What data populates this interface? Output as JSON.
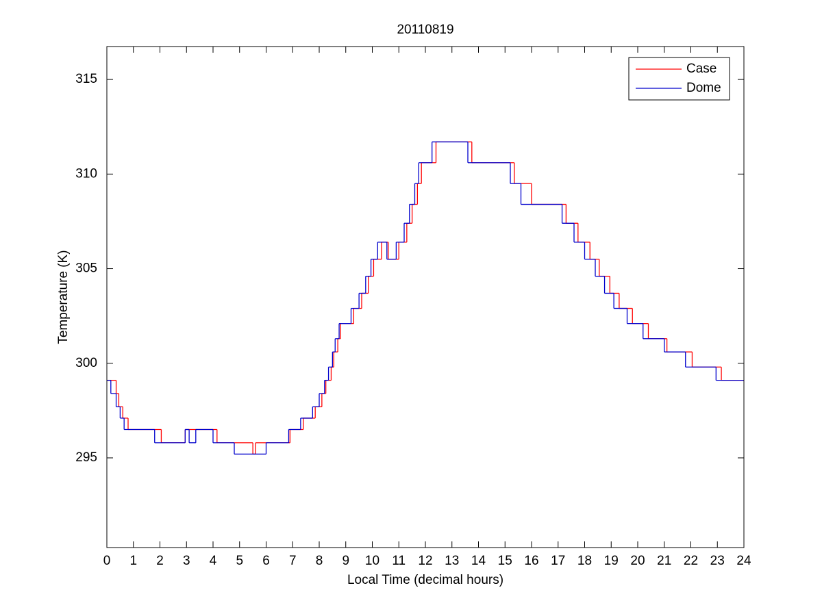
{
  "chart_data": {
    "type": "line",
    "drawstyle": "steps-post",
    "title": "20110819",
    "xlabel": "Local Time (decimal hours)",
    "ylabel": "Temperature (K)",
    "xlim": [
      0,
      24
    ],
    "xticks": [
      0,
      1,
      2,
      3,
      4,
      5,
      6,
      7,
      8,
      9,
      10,
      11,
      12,
      13,
      14,
      15,
      16,
      17,
      18,
      19,
      20,
      21,
      22,
      23,
      24
    ],
    "ylim": [
      290.26,
      316.74
    ],
    "yticks": [
      295,
      300,
      305,
      310,
      315
    ],
    "grid": false,
    "legend": "upper right",
    "series": [
      {
        "name": "Case",
        "color": "#ff0000",
        "x": [
          0,
          0.35,
          0.45,
          0.6,
          0.8,
          2.05,
          2.95,
          4.15,
          5.5,
          5.6,
          6.9,
          7.4,
          7.85,
          8.1,
          8.25,
          8.45,
          8.55,
          8.7,
          8.8,
          9.3,
          9.6,
          9.85,
          10.05,
          10.35,
          10.6,
          11.0,
          11.3,
          11.5,
          11.7,
          11.85,
          12.4,
          13.75,
          15.35,
          16.0,
          17.3,
          17.75,
          18.2,
          18.55,
          18.95,
          19.3,
          19.8,
          20.4,
          21.1,
          22.05,
          23.15,
          24
        ],
        "values": [
          299.1,
          298.4,
          297.7,
          297.1,
          296.5,
          295.8,
          296.5,
          295.8,
          295.2,
          295.8,
          296.5,
          297.1,
          297.7,
          298.4,
          299.1,
          299.8,
          300.6,
          301.3,
          302.1,
          302.9,
          303.7,
          304.6,
          305.5,
          306.4,
          305.5,
          306.4,
          307.4,
          308.4,
          309.5,
          310.6,
          311.7,
          310.6,
          309.5,
          308.4,
          307.4,
          306.4,
          305.5,
          304.6,
          303.7,
          302.9,
          302.1,
          301.3,
          300.6,
          299.8,
          299.1,
          299.1
        ]
      },
      {
        "name": "Dome",
        "color": "#0000cc",
        "x": [
          0,
          0.15,
          0.35,
          0.5,
          0.65,
          1.8,
          2.95,
          3.1,
          3.35,
          4.0,
          4.8,
          6.0,
          6.85,
          7.3,
          7.75,
          8.0,
          8.2,
          8.35,
          8.5,
          8.6,
          8.75,
          9.2,
          9.5,
          9.75,
          9.95,
          10.2,
          10.55,
          10.9,
          11.2,
          11.4,
          11.6,
          11.75,
          12.25,
          13.6,
          15.2,
          15.6,
          17.15,
          17.6,
          18.0,
          18.4,
          18.75,
          19.1,
          19.6,
          20.2,
          21.0,
          21.8,
          22.95,
          24
        ],
        "values": [
          299.1,
          298.4,
          297.7,
          297.1,
          296.5,
          295.8,
          296.5,
          295.8,
          296.5,
          295.8,
          295.2,
          295.8,
          296.5,
          297.1,
          297.7,
          298.4,
          299.1,
          299.8,
          300.6,
          301.3,
          302.1,
          302.9,
          303.7,
          304.6,
          305.5,
          306.4,
          305.5,
          306.4,
          307.4,
          308.4,
          309.5,
          310.6,
          311.7,
          310.6,
          309.5,
          308.4,
          307.4,
          306.4,
          305.5,
          304.6,
          303.7,
          302.9,
          302.1,
          301.3,
          300.6,
          299.8,
          299.1,
          299.1
        ]
      }
    ]
  }
}
